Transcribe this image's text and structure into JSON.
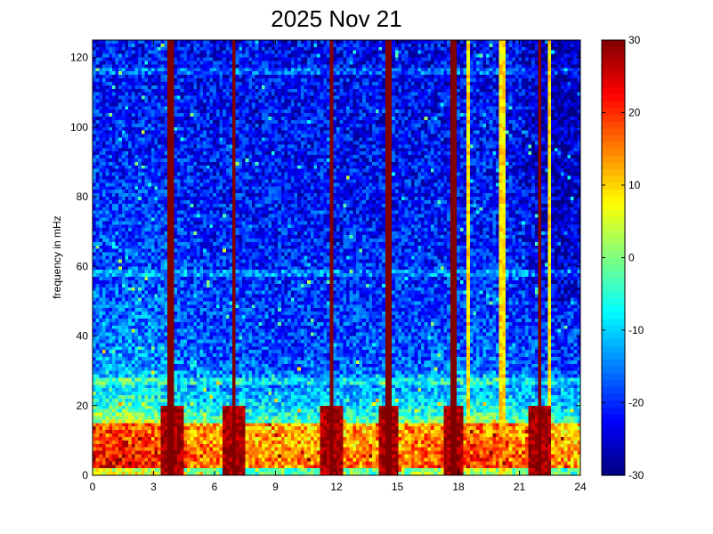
{
  "chart_data": {
    "type": "heatmap",
    "title": "2025 Nov 21",
    "xlabel": "",
    "ylabel": "frequency in mHz",
    "xlim": [
      0,
      24
    ],
    "ylim": [
      0,
      125
    ],
    "x_ticks": [
      "0",
      "3",
      "6",
      "9",
      "12",
      "15",
      "18",
      "21",
      "24"
    ],
    "y_ticks": [
      "0",
      "20",
      "40",
      "60",
      "80",
      "100",
      "120"
    ],
    "colorbar": {
      "limits": [
        -30,
        30
      ],
      "ticks": [
        "30",
        "20",
        "10",
        "0",
        "-10",
        "-20",
        "-30"
      ],
      "colormap": "jet"
    },
    "grid": false,
    "impulse_times_hours": [
      3.9,
      6.95,
      11.75,
      14.55,
      17.75,
      22.0
    ],
    "faint_streak_times_hours": [
      3.75,
      18.5,
      20.15,
      22.5
    ],
    "low_frequency_band_mhz": [
      2,
      15
    ],
    "horizontal_bands_mhz": [
      116,
      58,
      27
    ]
  }
}
